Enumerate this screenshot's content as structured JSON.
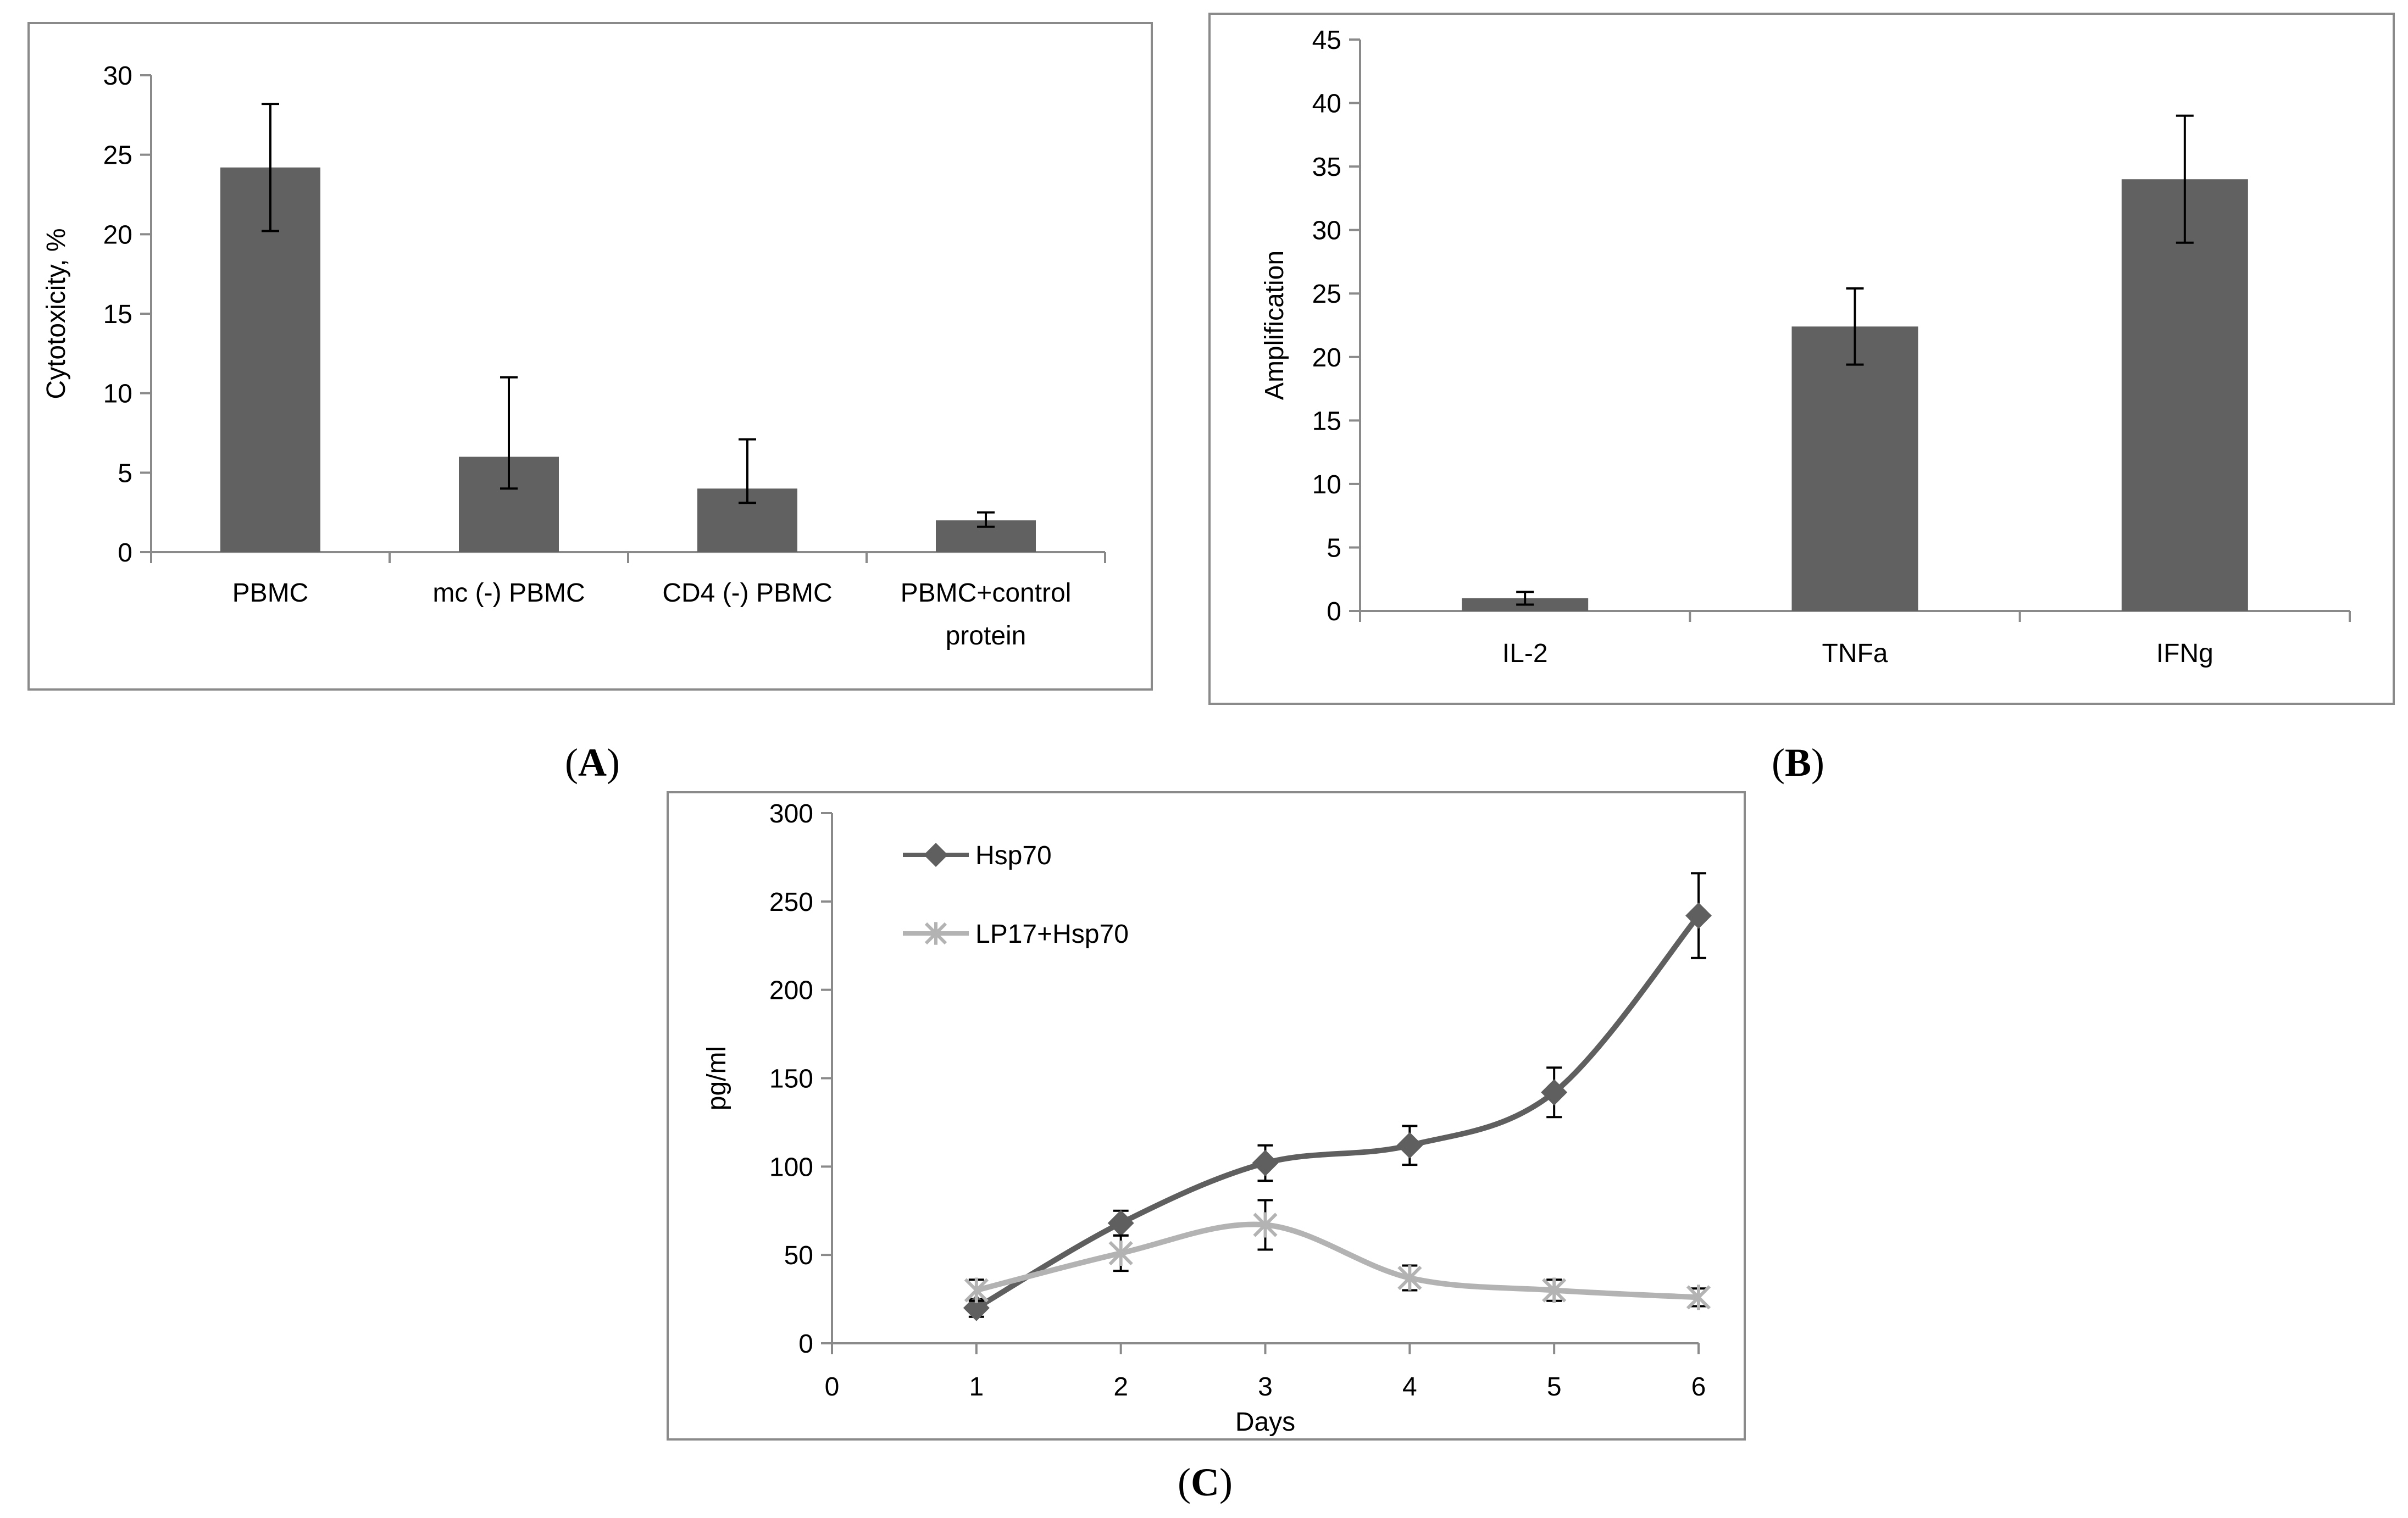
{
  "chart_data": [
    {
      "id": "A",
      "panel_label": "A",
      "type": "bar",
      "title": "",
      "xlabel": "",
      "ylabel": "Cytotoxicity, %",
      "ylim": [
        0,
        30
      ],
      "yticks": [
        0,
        5,
        10,
        15,
        20,
        25,
        30
      ],
      "categories": [
        [
          "PBMC"
        ],
        [
          "mc (-) PBMC"
        ],
        [
          "CD4 (-) PBMC"
        ],
        [
          "PBMC+control",
          "protein"
        ]
      ],
      "values": [
        24.2,
        6,
        4,
        2
      ],
      "errors": [
        [
          4,
          4
        ],
        [
          2,
          5
        ],
        [
          0.9,
          3.1
        ],
        [
          0.4,
          0.5
        ]
      ],
      "bar_color": "#616161",
      "grid": false
    },
    {
      "id": "B",
      "panel_label": "B",
      "type": "bar",
      "title": "",
      "xlabel": "",
      "ylabel": "Amplification",
      "ylim": [
        0,
        45
      ],
      "yticks": [
        0,
        5,
        10,
        15,
        20,
        25,
        30,
        35,
        40,
        45
      ],
      "categories": [
        [
          "IL-2"
        ],
        [
          "TNFa"
        ],
        [
          "IFNg"
        ]
      ],
      "values": [
        1,
        22.4,
        34
      ],
      "errors": [
        [
          0.5,
          0.5
        ],
        [
          3,
          3
        ],
        [
          5,
          5
        ]
      ],
      "bar_color": "#616161",
      "grid": false
    },
    {
      "id": "C",
      "panel_label": "C",
      "type": "line",
      "title": "",
      "xlabel": "Days",
      "ylabel": "pg/ml",
      "xlim": [
        0,
        6
      ],
      "xticks": [
        0,
        1,
        2,
        3,
        4,
        5,
        6
      ],
      "ylim": [
        0,
        300
      ],
      "yticks": [
        0,
        50,
        100,
        150,
        200,
        250,
        300
      ],
      "legend_position": "top-left",
      "x": [
        1,
        2,
        3,
        4,
        5,
        6
      ],
      "series": [
        {
          "name": "Hsp70",
          "values": [
            20,
            68,
            102,
            112,
            142,
            242
          ],
          "errors": [
            5,
            7,
            10,
            11,
            14,
            24
          ],
          "color": "#5f5f5f",
          "marker": "diamond"
        },
        {
          "name": "LP17+Hsp70",
          "values": [
            30,
            51,
            67,
            37,
            30,
            26
          ],
          "errors": [
            6,
            10,
            14,
            7,
            6,
            5
          ],
          "color": "#b3b3b3",
          "marker": "star"
        }
      ],
      "grid": false
    }
  ]
}
